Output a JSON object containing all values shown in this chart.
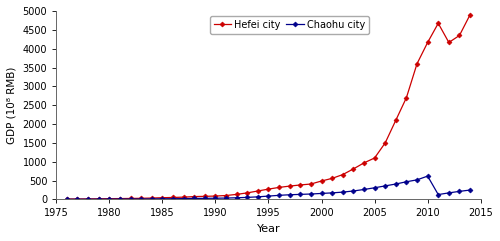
{
  "hefei_years": [
    1976,
    1977,
    1978,
    1979,
    1980,
    1981,
    1982,
    1983,
    1984,
    1985,
    1986,
    1987,
    1988,
    1989,
    1990,
    1991,
    1992,
    1993,
    1994,
    1995,
    1996,
    1997,
    1998,
    1999,
    2000,
    2001,
    2002,
    2003,
    2004,
    2005,
    2006,
    2007,
    2008,
    2009,
    2010,
    2011,
    2012,
    2013,
    2014
  ],
  "hefei_gdp": [
    13,
    14,
    16,
    19,
    22,
    24,
    27,
    31,
    38,
    47,
    53,
    62,
    77,
    83,
    91,
    105,
    135,
    175,
    225,
    275,
    320,
    355,
    385,
    410,
    490,
    560,
    660,
    810,
    970,
    1100,
    1500,
    2100,
    2700,
    3600,
    4164,
    4672,
    4164,
    4350,
    4900
  ],
  "chaohu_years": [
    1976,
    1977,
    1978,
    1979,
    1980,
    1981,
    1982,
    1983,
    1984,
    1985,
    1986,
    1987,
    1988,
    1989,
    1990,
    1991,
    1992,
    1993,
    1994,
    1995,
    1996,
    1997,
    1998,
    1999,
    2000,
    2001,
    2002,
    2003,
    2004,
    2005,
    2006,
    2007,
    2008,
    2009,
    2010,
    2011,
    2012,
    2013,
    2014
  ],
  "chaohu_gdp": [
    5,
    6,
    7,
    8,
    9,
    10,
    11,
    12,
    15,
    18,
    20,
    23,
    28,
    30,
    33,
    38,
    45,
    55,
    70,
    90,
    110,
    125,
    135,
    145,
    160,
    175,
    195,
    225,
    265,
    310,
    360,
    410,
    470,
    520,
    620,
    130,
    175,
    215,
    250
  ],
  "hefei_color": "#cc0000",
  "chaohu_color": "#00008b",
  "xlabel": "Year",
  "ylabel": "GDP (10⁸ RMB)",
  "xlim": [
    1975,
    2015
  ],
  "ylim": [
    0,
    5000
  ],
  "yticks": [
    0,
    500,
    1000,
    1500,
    2000,
    2500,
    3000,
    3500,
    4000,
    4500,
    5000
  ],
  "xticks": [
    1975,
    1980,
    1985,
    1990,
    1995,
    2000,
    2005,
    2010,
    2015
  ],
  "legend_hefei": "Hefei city",
  "legend_chaohu": "Chaohu city",
  "background_color": "#ffffff"
}
